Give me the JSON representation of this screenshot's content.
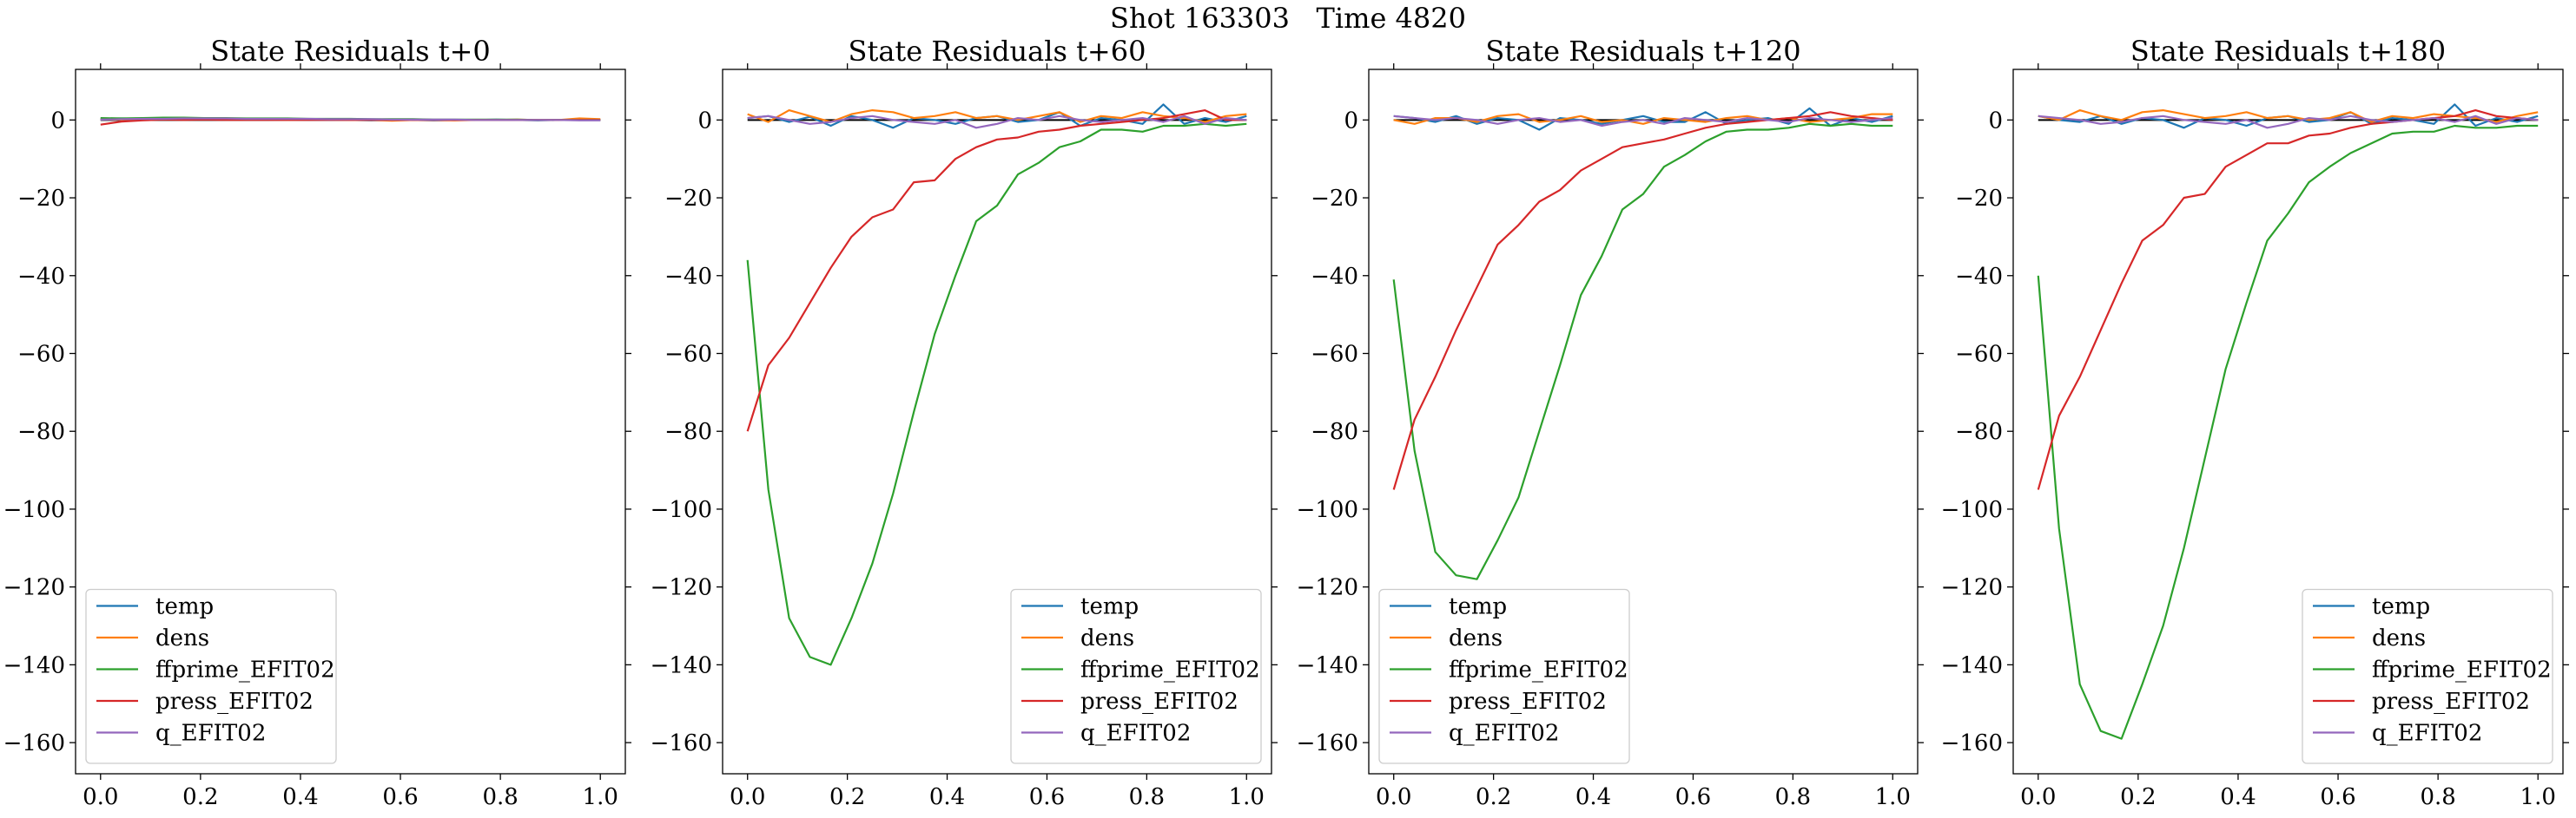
{
  "figure": {
    "suptitle": "Shot 163303   Time 4820"
  },
  "colors": {
    "temp": "#1f77b4",
    "dens": "#ff7f0e",
    "ffprime_EFIT02": "#2ca02c",
    "press_EFIT02": "#d62728",
    "q_EFIT02": "#9467bd",
    "zero_line": "#000000"
  },
  "chart_data": [
    {
      "type": "line",
      "title": "State Residuals t+0",
      "xlabel": "",
      "ylabel": "",
      "xlim": [
        -0.05,
        1.05
      ],
      "ylim": [
        -168,
        13
      ],
      "xticks": [
        0.0,
        0.2,
        0.4,
        0.6,
        0.8,
        1.0
      ],
      "xtick_labels": [
        "0.0",
        "0.2",
        "0.4",
        "0.6",
        "0.8",
        "1.0"
      ],
      "yticks": [
        0,
        -20,
        -40,
        -60,
        -80,
        -100,
        -120,
        -140,
        -160
      ],
      "ytick_labels": [
        "0",
        "−20",
        "−40",
        "−60",
        "−80",
        "−100",
        "−120",
        "−140",
        "−160"
      ],
      "grid": false,
      "legend_position": "lower left",
      "zero_line": true,
      "x": [
        0.0,
        0.0417,
        0.0833,
        0.125,
        0.1667,
        0.2083,
        0.25,
        0.2917,
        0.3333,
        0.375,
        0.4167,
        0.4583,
        0.5,
        0.5417,
        0.5833,
        0.625,
        0.6667,
        0.7083,
        0.75,
        0.7917,
        0.8333,
        0.875,
        0.9167,
        0.9583,
        1.0
      ],
      "series": [
        {
          "name": "temp",
          "values": [
            0.3,
            0.4,
            0.3,
            0.2,
            0.3,
            0.2,
            0.1,
            0.2,
            0.1,
            0.0,
            0.1,
            0.0,
            0.0,
            -0.1,
            0.0,
            0.0,
            -0.1,
            0.0,
            0.0,
            0.1,
            0.0,
            -0.1,
            0.0,
            0.0,
            0.0
          ]
        },
        {
          "name": "dens",
          "values": [
            0.2,
            0.1,
            0.2,
            0.3,
            0.2,
            0.1,
            0.2,
            0.1,
            0.1,
            0.0,
            0.1,
            0.1,
            0.0,
            0.0,
            -0.2,
            0.0,
            0.0,
            -0.1,
            0.0,
            0.0,
            0.1,
            0.0,
            0.0,
            0.4,
            0.2
          ]
        },
        {
          "name": "ffprime_EFIT02",
          "values": [
            0.5,
            0.4,
            0.5,
            0.6,
            0.6,
            0.5,
            0.5,
            0.4,
            0.4,
            0.4,
            0.3,
            0.3,
            0.3,
            0.2,
            0.2,
            0.2,
            0.1,
            0.1,
            0.1,
            0.1,
            0.1,
            0.0,
            0.0,
            0.0,
            0.0
          ]
        },
        {
          "name": "press_EFIT02",
          "values": [
            -1.2,
            -0.4,
            -0.1,
            0.1,
            0.0,
            0.1,
            0.0,
            0.0,
            0.0,
            0.0,
            0.0,
            0.0,
            0.0,
            0.0,
            0.0,
            0.0,
            0.0,
            0.0,
            0.0,
            0.0,
            0.0,
            0.0,
            0.0,
            0.0,
            0.0
          ]
        },
        {
          "name": "q_EFIT02",
          "values": [
            0.1,
            0.2,
            0.3,
            0.3,
            0.4,
            0.4,
            0.4,
            0.3,
            0.3,
            0.3,
            0.3,
            0.2,
            0.2,
            0.2,
            0.1,
            0.1,
            0.1,
            0.1,
            0.0,
            0.0,
            0.0,
            0.0,
            0.0,
            -0.1,
            -0.1
          ]
        }
      ]
    },
    {
      "type": "line",
      "title": "State Residuals t+60",
      "xlabel": "",
      "ylabel": "",
      "xlim": [
        -0.05,
        1.05
      ],
      "ylim": [
        -168,
        13
      ],
      "xticks": [
        0.0,
        0.2,
        0.4,
        0.6,
        0.8,
        1.0
      ],
      "xtick_labels": [
        "0.0",
        "0.2",
        "0.4",
        "0.6",
        "0.8",
        "1.0"
      ],
      "yticks": [
        0,
        -20,
        -40,
        -60,
        -80,
        -100,
        -120,
        -140,
        -160
      ],
      "ytick_labels": [
        "0",
        "−20",
        "−40",
        "−60",
        "−80",
        "−100",
        "−120",
        "−140",
        "−160"
      ],
      "grid": false,
      "legend_position": "lower right",
      "zero_line": true,
      "x": [
        0.0,
        0.0417,
        0.0833,
        0.125,
        0.1667,
        0.2083,
        0.25,
        0.2917,
        0.3333,
        0.375,
        0.4167,
        0.4583,
        0.5,
        0.5417,
        0.5833,
        0.625,
        0.6667,
        0.7083,
        0.75,
        0.7917,
        0.8333,
        0.875,
        0.9167,
        0.9583,
        1.0
      ],
      "series": [
        {
          "name": "temp",
          "values": [
            0.5,
            1.0,
            -0.5,
            0.8,
            -1.5,
            1.0,
            0.0,
            -2.0,
            0.5,
            0.0,
            -1.0,
            0.5,
            1.0,
            -0.5,
            0.0,
            2.0,
            -1.5,
            0.5,
            0.0,
            -1.0,
            4.0,
            -1.0,
            0.5,
            -0.5,
            1.0
          ]
        },
        {
          "name": "dens",
          "values": [
            1.5,
            -0.5,
            2.5,
            1.0,
            -0.5,
            1.5,
            2.5,
            2.0,
            0.5,
            1.0,
            2.0,
            0.5,
            1.0,
            0.0,
            1.0,
            2.0,
            -0.5,
            1.0,
            0.5,
            2.0,
            1.0,
            0.5,
            -0.5,
            1.0,
            1.5
          ]
        },
        {
          "name": "ffprime_EFIT02",
          "values": [
            -36,
            -95,
            -128,
            -138,
            -140,
            -128,
            -114,
            -96,
            -75,
            -55,
            -40,
            -26,
            -22,
            -14,
            -11,
            -7,
            -5.5,
            -2.5,
            -2.5,
            -3,
            -1.5,
            -1.5,
            -1,
            -1.5,
            -1
          ]
        },
        {
          "name": "press_EFIT02",
          "values": [
            -80,
            -63,
            -56,
            -47,
            -38,
            -30,
            -25,
            -23,
            -16,
            -15.5,
            -10,
            -7,
            -5,
            -4.5,
            -3,
            -2.5,
            -1.5,
            -1,
            -0.5,
            0,
            0.5,
            1.5,
            2.5,
            0,
            0
          ]
        },
        {
          "name": "q_EFIT02",
          "values": [
            0.5,
            1.0,
            0.0,
            -1.0,
            -0.5,
            0.5,
            1.0,
            0.0,
            -0.5,
            -1.0,
            0.0,
            -2.0,
            -1.0,
            0.5,
            0.0,
            1.0,
            0.0,
            -0.5,
            0.0,
            0.5,
            -0.5,
            1.0,
            -1.0,
            0.5,
            0.0
          ]
        }
      ]
    },
    {
      "type": "line",
      "title": "State Residuals t+120",
      "xlabel": "",
      "ylabel": "",
      "xlim": [
        -0.05,
        1.05
      ],
      "ylim": [
        -168,
        13
      ],
      "xticks": [
        0.0,
        0.2,
        0.4,
        0.6,
        0.8,
        1.0
      ],
      "xtick_labels": [
        "0.0",
        "0.2",
        "0.4",
        "0.6",
        "0.8",
        "1.0"
      ],
      "yticks": [
        0,
        -20,
        -40,
        -60,
        -80,
        -100,
        -120,
        -140,
        -160
      ],
      "ytick_labels": [
        "0",
        "−20",
        "−40",
        "−60",
        "−80",
        "−100",
        "−120",
        "−140",
        "−160"
      ],
      "grid": false,
      "legend_position": "lower left",
      "zero_line": true,
      "x": [
        0.0,
        0.0417,
        0.0833,
        0.125,
        0.1667,
        0.2083,
        0.25,
        0.2917,
        0.3333,
        0.375,
        0.4167,
        0.4583,
        0.5,
        0.5417,
        0.5833,
        0.625,
        0.6667,
        0.7083,
        0.75,
        0.7917,
        0.8333,
        0.875,
        0.9167,
        0.9583,
        1.0
      ],
      "series": [
        {
          "name": "temp",
          "values": [
            1.0,
            0.5,
            -0.5,
            1.0,
            -1.0,
            0.5,
            0.0,
            -2.5,
            0.5,
            0.0,
            -1.0,
            0.0,
            1.0,
            -0.5,
            -0.5,
            2.0,
            -1.0,
            0.0,
            0.5,
            -1.0,
            3.0,
            -1.5,
            0.5,
            -0.5,
            1.0
          ]
        },
        {
          "name": "dens",
          "values": [
            0.0,
            -1.0,
            0.5,
            0.5,
            -0.5,
            1.0,
            1.5,
            -0.5,
            0.0,
            1.0,
            -0.5,
            0.0,
            -1.0,
            0.5,
            0.0,
            -0.5,
            0.5,
            1.0,
            0.0,
            0.5,
            -0.5,
            0.0,
            0.5,
            1.5,
            1.5
          ]
        },
        {
          "name": "ffprime_EFIT02",
          "values": [
            -41,
            -85,
            -111,
            -117,
            -118,
            -108,
            -97,
            -80,
            -63,
            -45,
            -35,
            -23,
            -19,
            -12,
            -9,
            -5.5,
            -3,
            -2.5,
            -2.5,
            -2,
            -1,
            -1.5,
            -1,
            -1.5,
            -1.5
          ]
        },
        {
          "name": "press_EFIT02",
          "values": [
            -95,
            -77,
            -66,
            -54,
            -43,
            -32,
            -27,
            -21,
            -18,
            -13,
            -10,
            -7,
            -6,
            -5,
            -3.5,
            -2,
            -1,
            -0.5,
            0,
            0.5,
            1.0,
            2.0,
            1.0,
            0.5,
            0.0
          ]
        },
        {
          "name": "q_EFIT02",
          "values": [
            1.0,
            0.5,
            0.0,
            0.5,
            0.0,
            -1.0,
            0.0,
            0.5,
            -0.5,
            0.0,
            -1.5,
            -0.5,
            0.0,
            -1.0,
            0.5,
            0.0,
            -0.5,
            0.5,
            0.0,
            -0.5,
            0.5,
            0.0,
            -0.5,
            0.0,
            0.5
          ]
        }
      ]
    },
    {
      "type": "line",
      "title": "State Residuals t+180",
      "xlabel": "",
      "ylabel": "",
      "xlim": [
        -0.05,
        1.05
      ],
      "ylim": [
        -168,
        13
      ],
      "xticks": [
        0.0,
        0.2,
        0.4,
        0.6,
        0.8,
        1.0
      ],
      "xtick_labels": [
        "0.0",
        "0.2",
        "0.4",
        "0.6",
        "0.8",
        "1.0"
      ],
      "yticks": [
        0,
        -20,
        -40,
        -60,
        -80,
        -100,
        -120,
        -140,
        -160
      ],
      "ytick_labels": [
        "0",
        "−20",
        "−40",
        "−60",
        "−80",
        "−100",
        "−120",
        "−140",
        "−160"
      ],
      "grid": false,
      "legend_position": "lower right",
      "zero_line": true,
      "x": [
        0.0,
        0.0417,
        0.0833,
        0.125,
        0.1667,
        0.2083,
        0.25,
        0.2917,
        0.3333,
        0.375,
        0.4167,
        0.4583,
        0.5,
        0.5417,
        0.5833,
        0.625,
        0.6667,
        0.7083,
        0.75,
        0.7917,
        0.8333,
        0.875,
        0.9167,
        0.9583,
        1.0
      ],
      "series": [
        {
          "name": "temp",
          "values": [
            1.0,
            0.0,
            -0.5,
            1.0,
            -1.0,
            0.5,
            0.0,
            -2.0,
            0.5,
            0.0,
            -1.5,
            0.5,
            1.0,
            -0.5,
            0.0,
            2.0,
            -1.0,
            0.5,
            0.0,
            -1.0,
            4.0,
            -1.5,
            0.5,
            -0.5,
            1.0
          ]
        },
        {
          "name": "dens",
          "values": [
            1.0,
            0.0,
            2.5,
            1.0,
            0.0,
            2.0,
            2.5,
            1.5,
            0.5,
            1.0,
            2.0,
            0.5,
            1.0,
            0.0,
            0.5,
            2.0,
            -0.5,
            1.0,
            0.5,
            1.5,
            1.0,
            0.5,
            -0.5,
            1.0,
            2.0
          ]
        },
        {
          "name": "ffprime_EFIT02",
          "values": [
            -40,
            -105,
            -145,
            -157,
            -159,
            -145,
            -130,
            -110,
            -87,
            -64,
            -47,
            -31,
            -24,
            -16,
            -12,
            -8.5,
            -6,
            -3.5,
            -3,
            -3,
            -1.5,
            -2,
            -2,
            -1.5,
            -1.5
          ]
        },
        {
          "name": "press_EFIT02",
          "values": [
            -95,
            -76,
            -66,
            -54,
            -42,
            -31,
            -27,
            -20,
            -19,
            -12,
            -9,
            -6,
            -6,
            -4,
            -3.5,
            -2,
            -1,
            -0.5,
            0,
            0.5,
            1.0,
            2.5,
            1.0,
            0.5,
            0.0
          ]
        },
        {
          "name": "q_EFIT02",
          "values": [
            1.0,
            0.5,
            0.0,
            -1.0,
            -0.5,
            0.5,
            1.0,
            0.0,
            -0.5,
            -1.0,
            0.0,
            -2.0,
            -1.0,
            0.5,
            0.0,
            1.0,
            0.0,
            -0.5,
            0.0,
            0.5,
            -0.5,
            1.0,
            -1.0,
            0.5,
            0.0
          ]
        }
      ]
    }
  ]
}
